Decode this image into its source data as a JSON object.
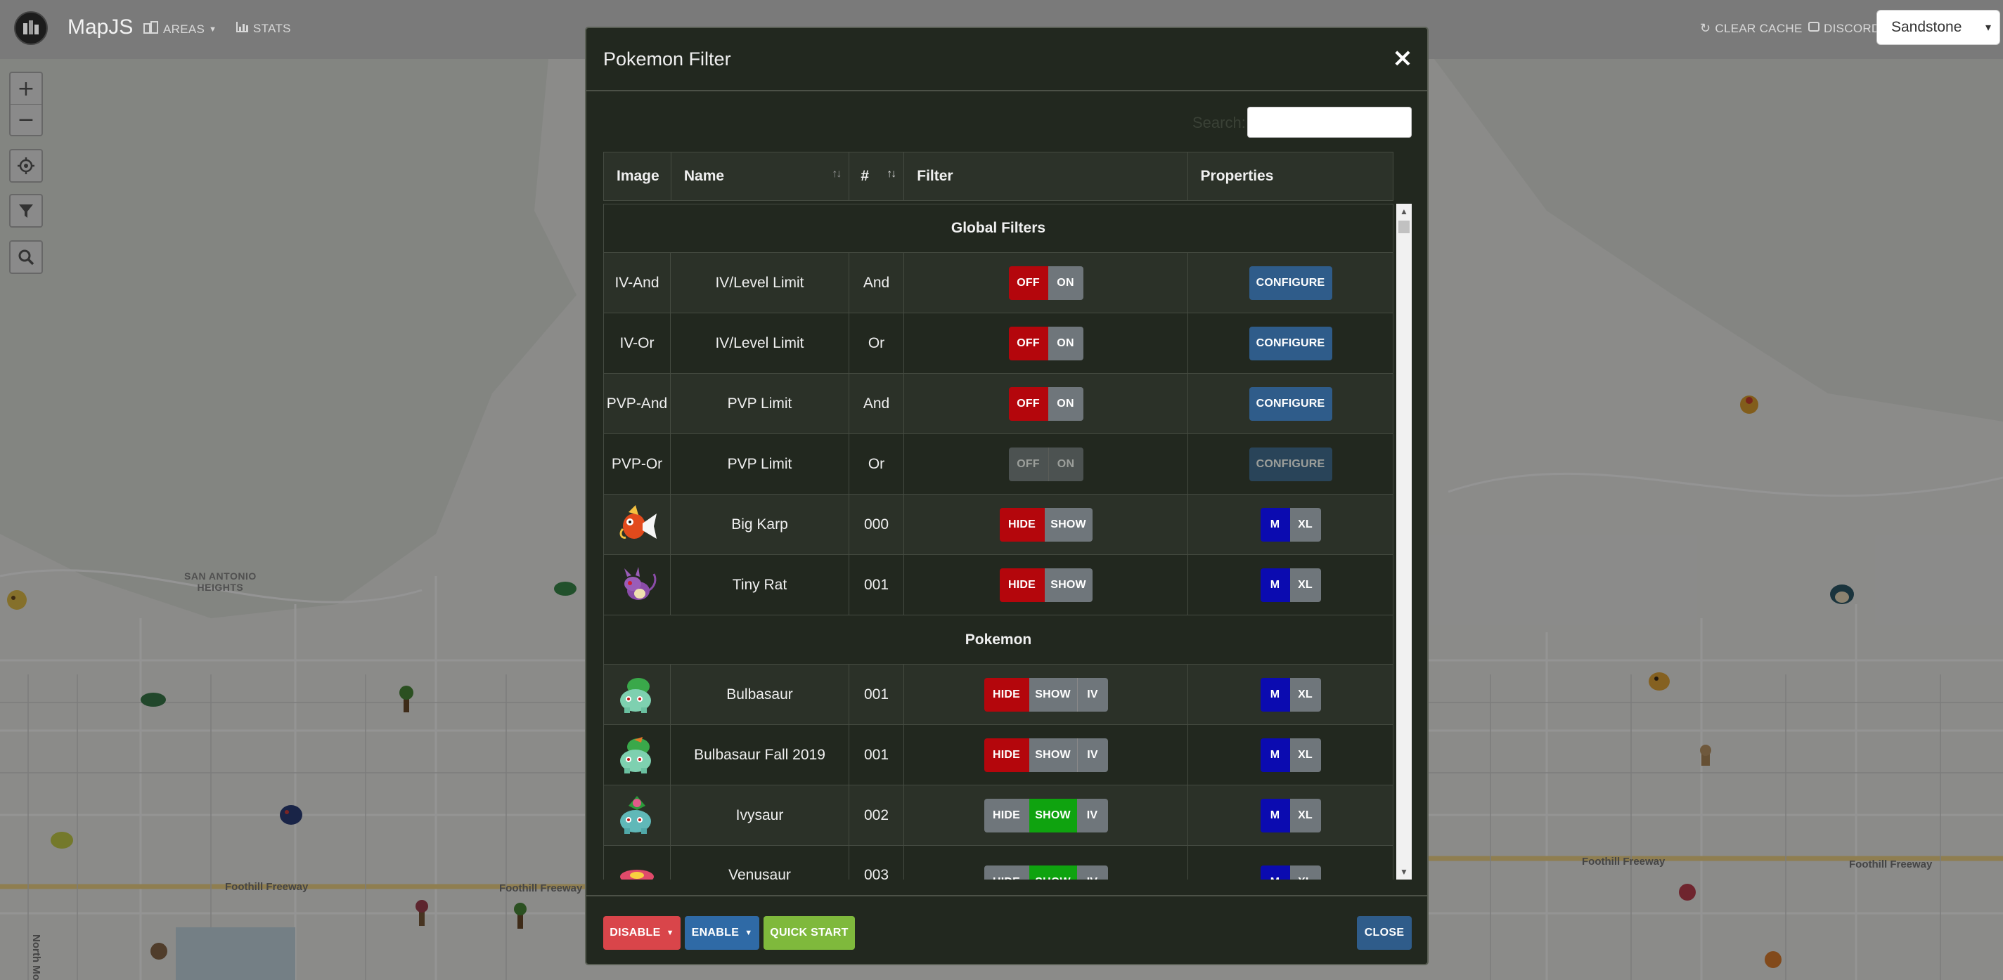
{
  "navbar": {
    "brand": "MapJS",
    "links": [
      {
        "label": "AREAS",
        "icon": "building-icon",
        "dropdown": true
      },
      {
        "label": "STATS",
        "icon": "bar-chart-icon",
        "dropdown": false
      }
    ],
    "right_links": [
      {
        "label": "CLEAR CACHE",
        "icon": "refresh-icon"
      },
      {
        "label": "DISCORD",
        "icon": "discord-icon"
      }
    ],
    "theme": "Sandstone"
  },
  "map": {
    "labels": [
      "SAN ANTONIO",
      "HEIGHTS"
    ],
    "roads": [
      "Foothill Freeway",
      "Foothill Freeway",
      "Foothill Freeway",
      "Foothill Freeway",
      "North Moun"
    ]
  },
  "modal": {
    "title": "Pokemon Filter",
    "close_symbol": "×",
    "search_label": "Search:",
    "search_value": "",
    "columns": [
      "Image",
      "Name",
      "#",
      "Filter",
      "Properties"
    ],
    "sections": [
      {
        "title": "Global Filters",
        "rows": [
          {
            "image": "IV-And",
            "name": "IV/Level Limit",
            "num": "And",
            "filter": [
              "OFF",
              "ON"
            ],
            "property": "CONFIGURE",
            "disabled": false
          },
          {
            "image": "IV-Or",
            "name": "IV/Level Limit",
            "num": "Or",
            "filter": [
              "OFF",
              "ON"
            ],
            "property": "CONFIGURE",
            "disabled": false
          },
          {
            "image": "PVP-And",
            "name": "PVP Limit",
            "num": "And",
            "filter": [
              "OFF",
              "ON"
            ],
            "property": "CONFIGURE",
            "disabled": false
          },
          {
            "image": "PVP-Or",
            "name": "PVP Limit",
            "num": "Or",
            "filter": [
              "OFF",
              "ON"
            ],
            "property": "CONFIGURE",
            "disabled": true
          },
          {
            "image": "magikarp-sprite",
            "name": "Big Karp",
            "num": "000",
            "filter": [
              "HIDE",
              "SHOW"
            ],
            "property": [
              "M",
              "XL"
            ]
          },
          {
            "image": "rattata-sprite",
            "name": "Tiny Rat",
            "num": "001",
            "filter": [
              "HIDE",
              "SHOW"
            ],
            "property": [
              "M",
              "XL"
            ]
          }
        ]
      },
      {
        "title": "Pokemon",
        "rows": [
          {
            "image": "bulbasaur-sprite",
            "name": "Bulbasaur",
            "num": "001",
            "filter": [
              "HIDE",
              "SHOW",
              "IV"
            ],
            "active": "HIDE",
            "property": [
              "M",
              "XL"
            ]
          },
          {
            "image": "bulbasaur-fall-sprite",
            "name": "Bulbasaur Fall 2019",
            "num": "001",
            "filter": [
              "HIDE",
              "SHOW",
              "IV"
            ],
            "active": "HIDE",
            "property": [
              "M",
              "XL"
            ]
          },
          {
            "image": "ivysaur-sprite",
            "name": "Ivysaur",
            "num": "002",
            "filter": [
              "HIDE",
              "SHOW",
              "IV"
            ],
            "active": "SHOW",
            "property": [
              "M",
              "XL"
            ]
          },
          {
            "image": "venusaur-sprite",
            "name": "Venusaur",
            "num": "003",
            "filter": [
              "HIDE",
              "SHOW",
              "IV"
            ],
            "active": "SHOW",
            "property": [
              "M",
              "XL"
            ]
          }
        ]
      }
    ],
    "footer": {
      "disable": "DISABLE",
      "enable": "ENABLE",
      "quick_start": "QUICK START",
      "close": "CLOSE"
    }
  },
  "colors": {
    "red": "#b4060c",
    "green": "#0fa30f",
    "navy": "#0b0bb0",
    "steel": "#2f5c8a",
    "gray": "#6f767b"
  }
}
